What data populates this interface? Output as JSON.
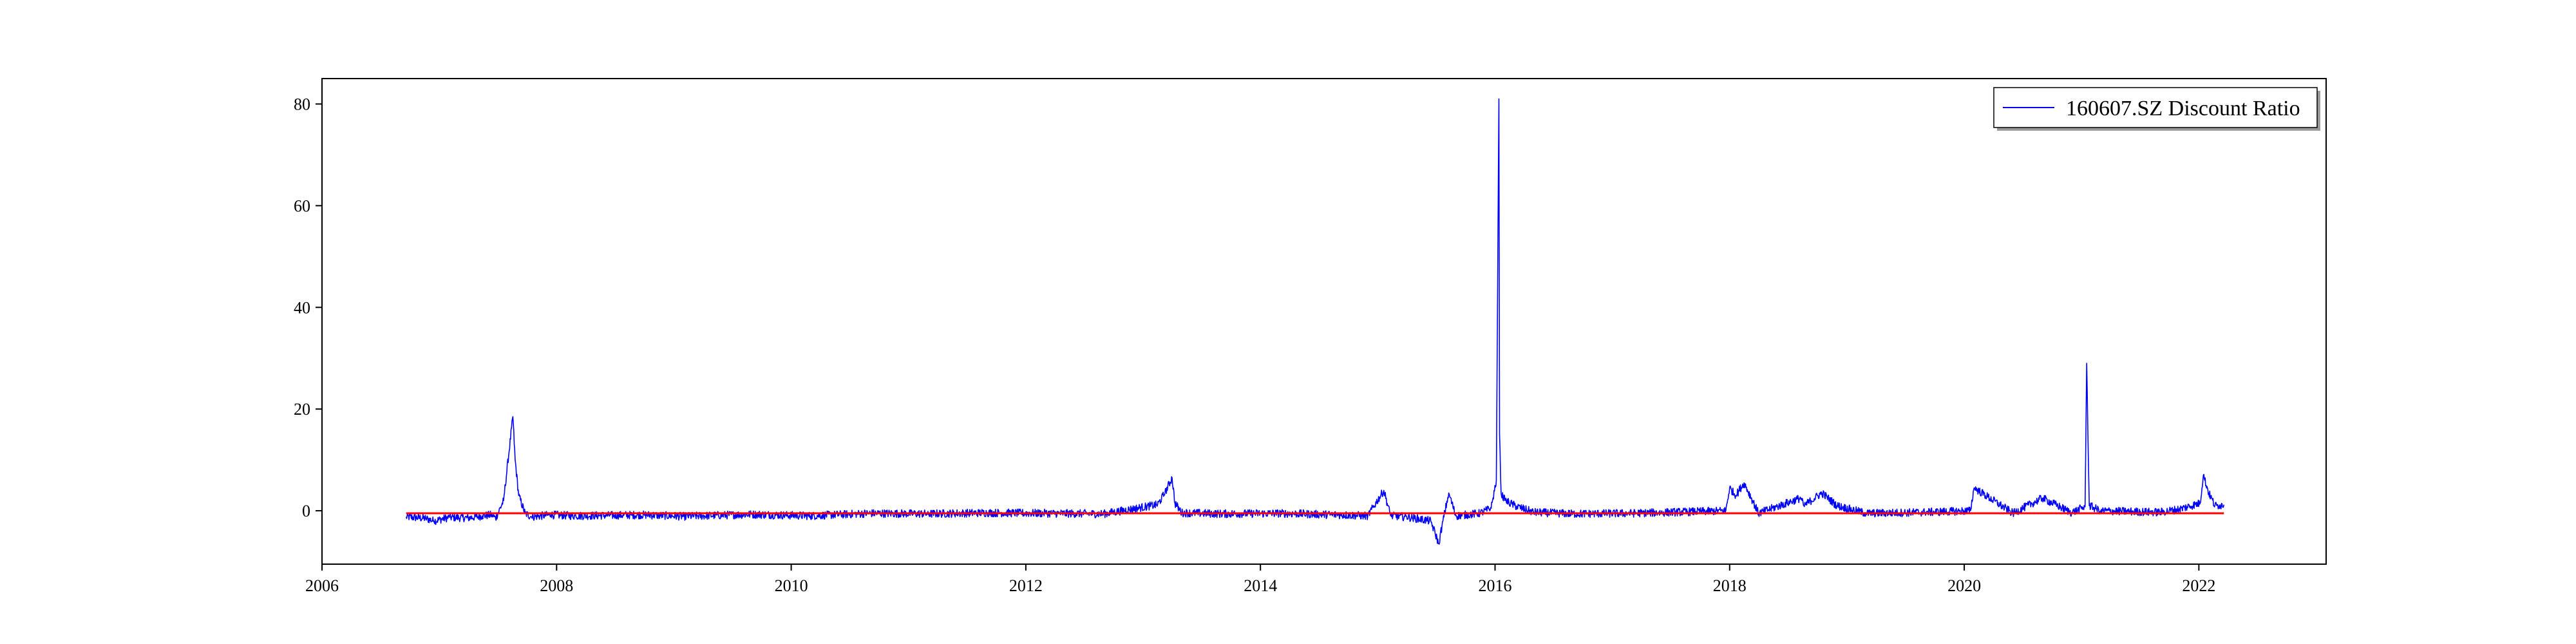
{
  "chart_data": {
    "type": "line",
    "title": "",
    "xlabel": "",
    "ylabel": "",
    "xlim": [
      "2006-01-01",
      "2023-02-01"
    ],
    "ylim": [
      -10.5,
      85
    ],
    "x_ticks": [
      "2006",
      "2008",
      "2010",
      "2012",
      "2014",
      "2016",
      "2018",
      "2020",
      "2022"
    ],
    "y_ticks": [
      0,
      20,
      40,
      60,
      80
    ],
    "grid": false,
    "legend": {
      "position": "top-right",
      "entries": [
        "160607.SZ Discount Ratio"
      ]
    },
    "series": [
      {
        "name": "160607.SZ Discount Ratio",
        "color": "#0000ff",
        "x": [
          "2006-09-20",
          "2006-11-20",
          "2006-12-15",
          "2007-02-01",
          "2007-04-01",
          "2007-04-25",
          "2007-05-15",
          "2007-06-15",
          "2007-06-25",
          "2007-07-20",
          "2007-08-18",
          "2007-08-25",
          "2007-09-05",
          "2007-09-25",
          "2007-10-15",
          "2007-12-15",
          "2008-03-01",
          "2008-06-15",
          "2008-10-01",
          "2009-02-01",
          "2009-09-01",
          "2010-03-01",
          "2010-09-01",
          "2011-03-01",
          "2011-09-01",
          "2012-03-01",
          "2012-09-01",
          "2013-02-15",
          "2013-03-10",
          "2013-04-01",
          "2013-04-10",
          "2013-05-01",
          "2013-09-01",
          "2014-03-01",
          "2014-09-01",
          "2014-12-01",
          "2015-01-20",
          "2015-02-10",
          "2015-04-01",
          "2015-06-15",
          "2015-07-10",
          "2015-07-20",
          "2015-08-10",
          "2015-09-01",
          "2015-11-15",
          "2015-12-20",
          "2016-01-05",
          "2016-01-13",
          "2016-01-15",
          "2016-01-20",
          "2016-02-01",
          "2016-03-10",
          "2016-05-01",
          "2016-09-01",
          "2017-03-01",
          "2017-09-01",
          "2017-12-20",
          "2018-01-01",
          "2018-01-20",
          "2018-02-15",
          "2018-04-01",
          "2018-08-10",
          "2018-08-20",
          "2018-10-15",
          "2018-12-01",
          "2019-03-01",
          "2019-09-01",
          "2020-01-20",
          "2020-02-01",
          "2020-06-01",
          "2020-09-01",
          "2020-12-01",
          "2021-01-12",
          "2021-01-17",
          "2021-01-25",
          "2021-03-01",
          "2021-09-01",
          "2021-11-01",
          "2022-01-05",
          "2022-01-15",
          "2022-02-01",
          "2022-02-20",
          "2022-03-05",
          "2022-03-20"
        ],
        "y": [
          -1.2,
          -1.5,
          -2.0,
          -1.3,
          -1.4,
          -1.2,
          -1.0,
          -0.8,
          -1.5,
          2.0,
          18.5,
          10.0,
          3.0,
          -0.5,
          -1.2,
          -0.8,
          -1.0,
          -0.9,
          -0.8,
          -1.1,
          -0.7,
          -1.0,
          -0.5,
          -0.6,
          -0.4,
          -0.5,
          -0.6,
          1.2,
          3.5,
          6.5,
          1.5,
          -0.4,
          -0.6,
          -0.5,
          -0.8,
          -1.0,
          4.0,
          -1.0,
          -1.2,
          -2.0,
          -6.5,
          -3.0,
          3.5,
          -1.0,
          -0.5,
          0.5,
          6.0,
          81.0,
          15.0,
          3.5,
          2.0,
          0.8,
          -0.3,
          -0.6,
          -0.5,
          -0.2,
          0.0,
          4.5,
          3.0,
          5.5,
          -0.5,
          2.5,
          1.0,
          3.5,
          1.0,
          -0.5,
          -0.3,
          0.0,
          4.5,
          -0.5,
          2.5,
          -0.4,
          0.8,
          29.0,
          1.0,
          0.0,
          -0.3,
          0.3,
          1.5,
          7.0,
          3.5,
          1.0,
          1.0,
          1.2
        ]
      },
      {
        "name": "",
        "color": "#ff0000",
        "x": [
          "2006-09-20",
          "2022-03-20"
        ],
        "y": [
          -0.5,
          -0.5
        ]
      }
    ]
  }
}
